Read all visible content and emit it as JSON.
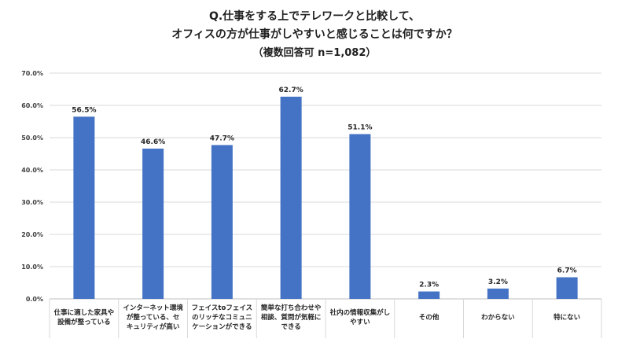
{
  "chart_data": {
    "type": "bar",
    "title_lines": [
      "Q.仕事をする上でテレワークと比較して、",
      "オフィスの方が仕事がしやすいと感じることは何ですか？",
      "（複数回答可 n=1,082）"
    ],
    "categories": [
      "仕事に適した家具や\n設備が整っている",
      "インターネット環境\nが整っている、セ\nキュリティが高い",
      "フェイスtoフェイス\nのリッチなコミュニ\nケーションができる",
      "簡単な打ち合わせや\n相談、質問が気軽に\nできる",
      "社内の情報収集がし\nやすい",
      "その他",
      "わからない",
      "特にない"
    ],
    "values": [
      56.5,
      46.6,
      47.7,
      62.7,
      51.1,
      2.3,
      3.2,
      6.7
    ],
    "data_labels": [
      "56.5%",
      "46.6%",
      "47.7%",
      "62.7%",
      "51.1%",
      "2.3%",
      "3.2%",
      "6.7%"
    ],
    "ylim": [
      0,
      70
    ],
    "yticks": [
      "0.0%",
      "10.0%",
      "20.0%",
      "30.0%",
      "40.0%",
      "50.0%",
      "60.0%",
      "70.0%"
    ],
    "grid": true,
    "bar_color": "#4472C4",
    "grid_color": "#d9d9d9"
  }
}
